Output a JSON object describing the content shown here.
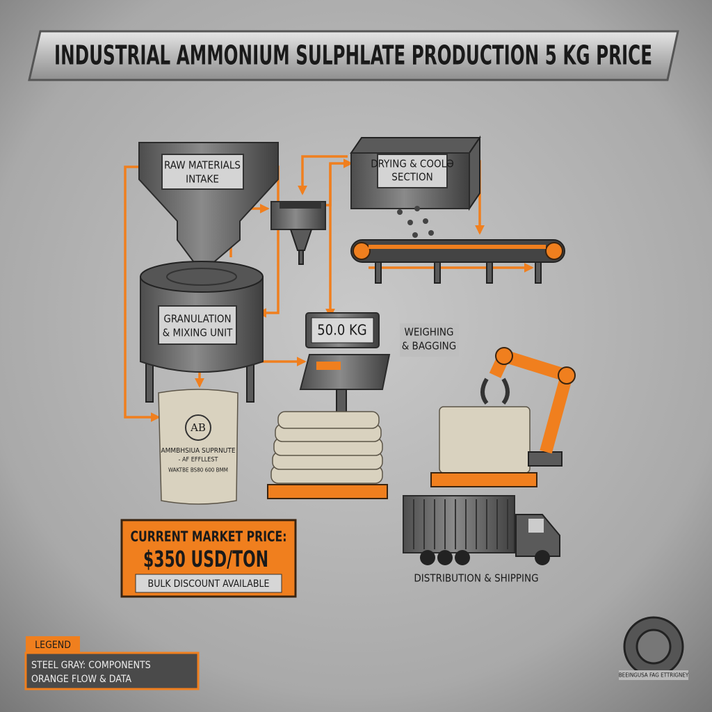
{
  "header": {
    "title": "INDUSTRIAL AMMONIUM SULPHLATE PRODUCTION 5 KG PRICE"
  },
  "nodes": [
    {
      "lines": [
        "RAW MATERIALS",
        "INTAKE"
      ]
    },
    {
      "lines": [
        "DRYING & COOLƏ",
        "SECTION"
      ]
    },
    {
      "lines": [
        "GRANULATION",
        "& MIXING UNIT"
      ]
    },
    {
      "lines": [
        "WEIGHING",
        "& BAGGING"
      ]
    },
    {
      "lines": [
        "DISTRIBUTION & SHIPPING"
      ]
    }
  ],
  "scale": {
    "display": "50.0 KG"
  },
  "bag": {
    "logo": "AB",
    "lines": [
      "AMMBHSIUA SUPRNUTE",
      "- AF EFFLLEST",
      "WAKTBE BS80 600 BMM"
    ]
  },
  "price_box": {
    "heading": "CURRENT MARKET PRICE:",
    "price": "$350 USD/TON",
    "note": "BULK DISCOUNT AVAILABLE"
  },
  "legend": {
    "title": "LEGEND",
    "items": [
      "STEEL GRAY: COMPONENTS",
      "ORANGE FLOW & DATA"
    ]
  },
  "badge": {
    "text": "BEEINGUSA FAG ETTRIGNEY"
  }
}
